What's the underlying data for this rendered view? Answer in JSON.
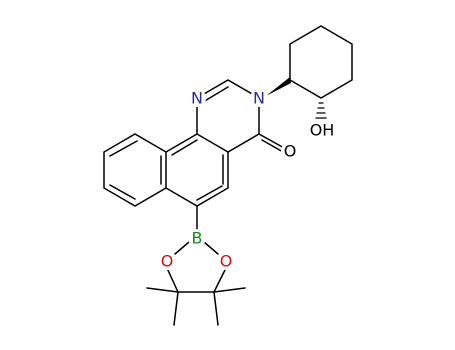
{
  "atoms": [
    {
      "label": "N"
    },
    {
      "label": "N"
    },
    {
      "label": "O"
    },
    {
      "label": "OH"
    },
    {
      "label": "B"
    },
    {
      "label": "O"
    },
    {
      "label": "O"
    }
  ]
}
